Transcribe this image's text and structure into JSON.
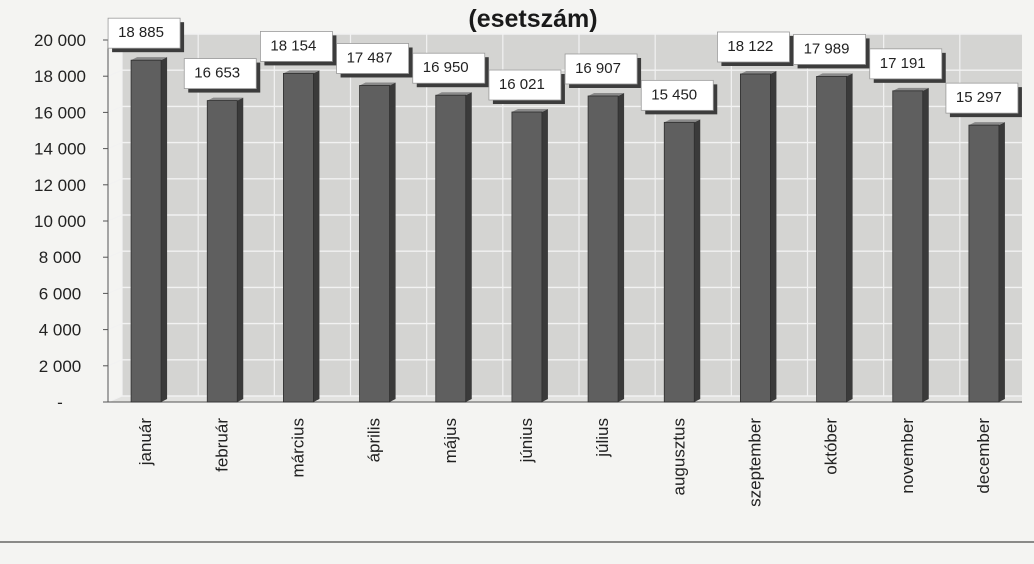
{
  "chart_data": {
    "type": "bar",
    "title": "(esetszám)",
    "xlabel": "",
    "ylabel": "",
    "ylim": [
      0,
      20000
    ],
    "y_ticks": [
      0,
      2000,
      4000,
      6000,
      8000,
      10000,
      12000,
      14000,
      16000,
      18000,
      20000
    ],
    "y_tick_labels": [
      "-",
      "2 000",
      "4 000",
      "6 000",
      "8 000",
      "10 000",
      "12 000",
      "14 000",
      "16 000",
      "18 000",
      "20 000"
    ],
    "grid": true,
    "legend": "none",
    "categories": [
      "január",
      "február",
      "március",
      "április",
      "május",
      "június",
      "július",
      "augusztus",
      "szeptember",
      "október",
      "november",
      "december"
    ],
    "values": [
      18885,
      16653,
      18154,
      17487,
      16950,
      16021,
      16907,
      15450,
      18122,
      17989,
      17191,
      15297
    ],
    "value_labels": [
      "18 885",
      "16 653",
      "18 154",
      "17 487",
      "16 950",
      "16 021",
      "16 907",
      "15 450",
      "18 122",
      "17 989",
      "17 191",
      "15 297"
    ],
    "colors": {
      "bar": "#5f5f5f",
      "bar_edge": "#2e2e2e",
      "plot_background": "#d4d4d2",
      "grid": "#f2f2f2",
      "label_box": "#ffffff"
    }
  }
}
